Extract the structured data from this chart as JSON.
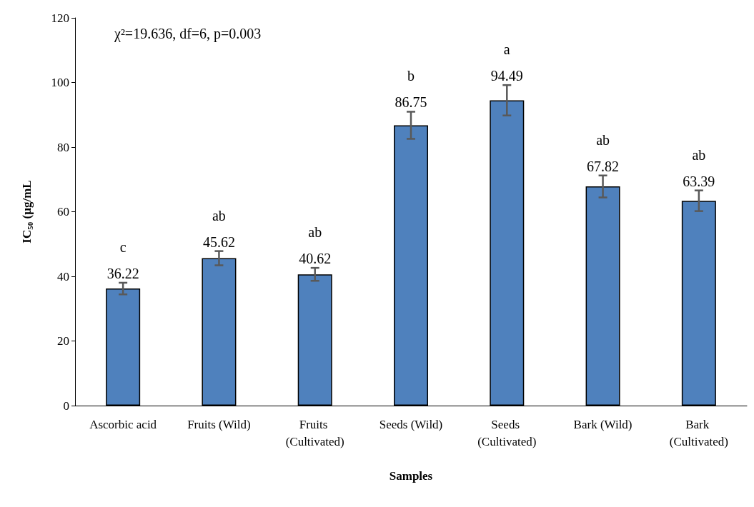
{
  "chart_data": {
    "type": "bar",
    "xlabel": "Samples",
    "ylabel": "IC$_{50}$ (µg/mL",
    "categories": [
      "Ascorbic acid",
      "Fruits (Wild)",
      "Fruits (Cultivated)",
      "Seeds (Wild)",
      "Seeds (Cultivated)",
      "Bark (Wild)",
      "Bark (Cultivated)"
    ],
    "values": [
      36.22,
      45.62,
      40.62,
      86.75,
      94.49,
      67.82,
      63.39
    ],
    "errors": [
      1.8,
      2.2,
      2.0,
      4.2,
      4.7,
      3.4,
      3.2
    ],
    "color": "#4f81bd",
    "data_labels": true,
    "ylim": [
      0,
      120
    ],
    "yticks": [
      0,
      20,
      40,
      60,
      80,
      100,
      120
    ],
    "grid": false,
    "annotations": [
      "χ²=19.636, df=6, p=0.003",
      "c",
      "ab",
      "ab",
      "b",
      "a",
      "ab",
      "ab"
    ]
  }
}
